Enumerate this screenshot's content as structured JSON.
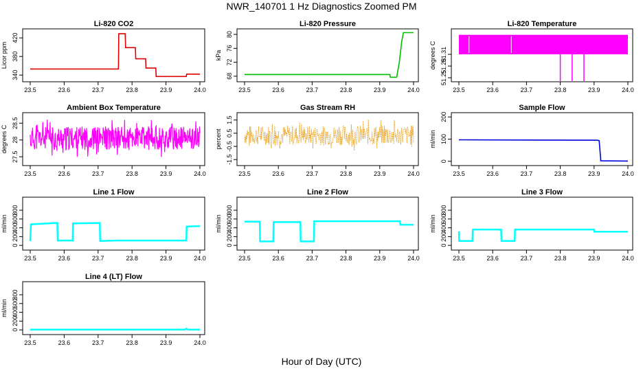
{
  "title": "NWR_140701  1 Hz Diagnostics Zoomed PM",
  "xlabel": "Hour of Day (UTC)",
  "chart_data": [
    {
      "type": "line",
      "title": "Li-820 CO2",
      "ylabel": "Licor ppm",
      "color": "#dd0000",
      "xlim": [
        23.5,
        24.0
      ],
      "ylim": [
        330,
        435
      ],
      "xticks": [
        "23.5",
        "23.6",
        "23.7",
        "23.8",
        "23.9",
        "24.0"
      ],
      "yticks": [
        340,
        380,
        420
      ],
      "series": [
        {
          "x": [
            23.5,
            23.76,
            23.761,
            23.78,
            23.781,
            23.81,
            23.811,
            23.84,
            23.841,
            23.87,
            23.871,
            23.96,
            23.961,
            24.0
          ],
          "y": [
            353,
            353,
            429,
            429,
            399,
            399,
            375,
            375,
            355,
            355,
            337,
            337,
            342,
            342
          ]
        }
      ]
    },
    {
      "type": "line",
      "title": "Li-820 Pressure",
      "ylabel": "kPa",
      "color": "#00bb00",
      "xlim": [
        23.5,
        24.0
      ],
      "ylim": [
        67,
        81
      ],
      "xticks": [
        "23.5",
        "23.6",
        "23.7",
        "23.8",
        "23.9",
        "24.0"
      ],
      "yticks": [
        68,
        72,
        76,
        80
      ],
      "series": [
        {
          "x": [
            23.5,
            23.93,
            23.931,
            23.95,
            23.958,
            23.965,
            23.97,
            24.0
          ],
          "y": [
            68.5,
            68.5,
            67.7,
            67.7,
            72,
            78,
            80.5,
            80.5
          ]
        }
      ]
    },
    {
      "type": "area",
      "title": "Li-820 Temperature",
      "ylabel": "degrees C",
      "color": "#ff00ff",
      "xlim": [
        23.5,
        24.0
      ],
      "ylim": [
        51.245,
        51.37
      ],
      "xticks": [
        "23.5",
        "23.6",
        "23.7",
        "23.8",
        "23.9",
        "24.0"
      ],
      "yticks": [
        51.25,
        51.28,
        51.31
      ],
      "band": [
        51.31,
        51.36
      ],
      "dips": [
        23.8,
        23.835,
        23.87
      ],
      "gaps": [
        23.53,
        23.655
      ]
    },
    {
      "type": "line",
      "title": "Ambient Box Temperature",
      "ylabel": "degrees C",
      "color": "#ff00ff",
      "xlim": [
        23.5,
        24.0
      ],
      "ylim": [
        27.3,
        28.75
      ],
      "xticks": [
        "23.5",
        "23.6",
        "23.7",
        "23.8",
        "23.9",
        "24.0"
      ],
      "yticks": [
        27.5,
        28.0,
        28.5
      ],
      "noise": {
        "center": 28.05,
        "amplitude": 0.35,
        "points": 420,
        "seed": 11
      }
    },
    {
      "type": "scatter",
      "title": "Gas Stream RH",
      "ylabel": "percent",
      "color": "#e69500",
      "xlim": [
        23.5,
        24.0
      ],
      "ylim": [
        -1.8,
        1.9
      ],
      "xticks": [
        "23.5",
        "23.6",
        "23.7",
        "23.8",
        "23.9",
        "24.0"
      ],
      "yticks": [
        -1.5,
        -0.5,
        0.5,
        1.5
      ],
      "noise": {
        "center": 0.35,
        "amplitude": 0.75,
        "points": 360,
        "seed": 7
      }
    },
    {
      "type": "line",
      "title": "Sample Flow",
      "ylabel": "ml/min",
      "color": "#0000dd",
      "xlim": [
        23.5,
        24.0
      ],
      "ylim": [
        -10,
        210
      ],
      "xticks": [
        "23.5",
        "23.6",
        "23.7",
        "23.8",
        "23.9",
        "24.0"
      ],
      "yticks": [
        0,
        100,
        200
      ],
      "series": [
        {
          "x": [
            23.5,
            23.91,
            23.915,
            23.92,
            24.0
          ],
          "y": [
            97,
            95,
            93,
            2,
            1
          ]
        }
      ]
    },
    {
      "type": "line",
      "title": "Line 1 Flow",
      "ylabel": "ml/min",
      "color": "#00ffff",
      "xlim": [
        23.5,
        24.0
      ],
      "ylim": [
        -60,
        1050
      ],
      "xticks": [
        "23.5",
        "23.6",
        "23.7",
        "23.8",
        "23.9",
        "24.0"
      ],
      "yticks": [
        0,
        200,
        400,
        600,
        800
      ],
      "series": [
        {
          "x": [
            23.5,
            23.502,
            23.58,
            23.581,
            23.625,
            23.626,
            23.705,
            23.706,
            23.75,
            23.96,
            23.961,
            24.0
          ],
          "y": [
            100,
            480,
            510,
            110,
            110,
            500,
            510,
            100,
            110,
            110,
            430,
            440
          ]
        }
      ]
    },
    {
      "type": "line",
      "title": "Line 2 Flow",
      "ylabel": "ml/min",
      "color": "#00ffff",
      "xlim": [
        23.5,
        24.0
      ],
      "ylim": [
        -60,
        1050
      ],
      "xticks": [
        "23.5",
        "23.6",
        "23.7",
        "23.8",
        "23.9",
        "24.0"
      ],
      "yticks": [
        0,
        200,
        400,
        600,
        800
      ],
      "series": [
        {
          "x": [
            23.5,
            23.545,
            23.546,
            23.585,
            23.586,
            23.665,
            23.666,
            23.705,
            23.706,
            23.96,
            23.961,
            24.0
          ],
          "y": [
            540,
            540,
            90,
            90,
            530,
            530,
            90,
            90,
            550,
            550,
            470,
            470
          ]
        }
      ]
    },
    {
      "type": "line",
      "title": "Line 3 Flow",
      "ylabel": "ml/min",
      "color": "#00ffff",
      "xlim": [
        23.5,
        24.0
      ],
      "ylim": [
        -60,
        1050
      ],
      "xticks": [
        "23.5",
        "23.6",
        "23.7",
        "23.8",
        "23.9",
        "24.0"
      ],
      "yticks": [
        0,
        200,
        400,
        600,
        800
      ],
      "series": [
        {
          "x": [
            23.5,
            23.501,
            23.54,
            23.541,
            23.625,
            23.626,
            23.665,
            23.666,
            23.9,
            23.901,
            24.0
          ],
          "y": [
            320,
            100,
            100,
            360,
            360,
            100,
            100,
            360,
            360,
            310,
            310
          ]
        }
      ]
    },
    {
      "type": "line",
      "title": "Line 4 (LT) Flow",
      "ylabel": "ml/min",
      "color": "#00ffff",
      "xlim": [
        23.5,
        24.0
      ],
      "ylim": [
        -60,
        1050
      ],
      "xticks": [
        "23.5",
        "23.6",
        "23.7",
        "23.8",
        "23.9",
        "24.0"
      ],
      "yticks": [
        0,
        200,
        400,
        600,
        800
      ],
      "series": [
        {
          "x": [
            23.5,
            23.955,
            23.96,
            23.965,
            24.0
          ],
          "y": [
            5,
            5,
            30,
            5,
            5
          ]
        }
      ]
    }
  ]
}
